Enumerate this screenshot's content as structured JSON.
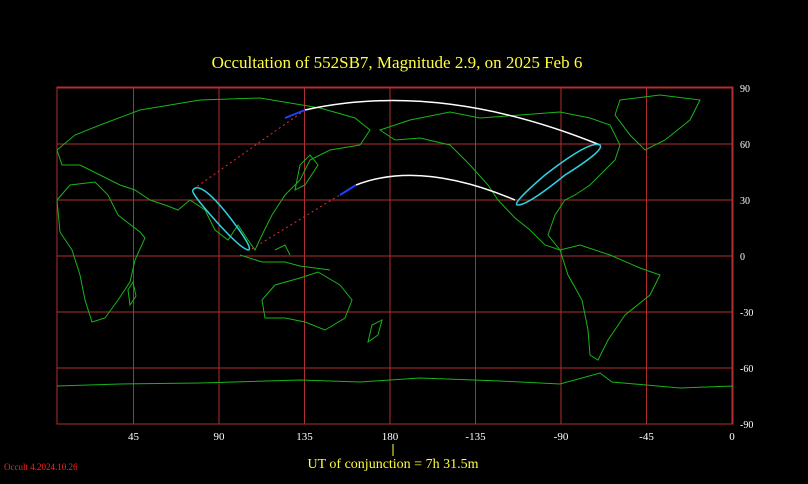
{
  "map": {
    "title": "Occultation  of  552SB7,      Magnitude 2.9,   on  2025 Feb  6",
    "lon_ticks": [
      45,
      90,
      135,
      180,
      -135,
      -90,
      -45,
      0
    ],
    "lat_ticks": [
      90,
      60,
      30,
      0,
      -30,
      -60,
      -90
    ],
    "conjunction_label": "UT of conjunction =  7h 31.5m",
    "version": "Occult 4.2024.10.26"
  }
}
